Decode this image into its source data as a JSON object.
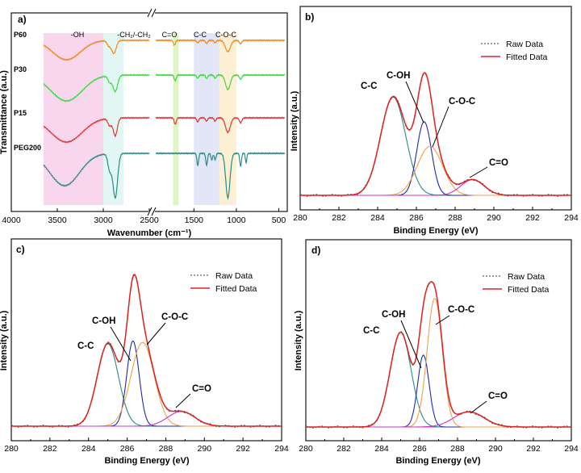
{
  "chart_data": [
    {
      "panel": "a)",
      "type": "line",
      "xlabel": "Wavenumber (cm⁻¹)",
      "ylabel": "Transmittance (a.u.)",
      "xlim": [
        4000,
        400
      ],
      "xticks": [
        4000,
        3500,
        3000,
        2500,
        1500,
        1000,
        500
      ],
      "series": [
        {
          "name": "P60",
          "color": "#ee8a1e"
        },
        {
          "name": "P30",
          "color": "#3ed83e"
        },
        {
          "name": "P15",
          "color": "#e03636"
        },
        {
          "name": "PEG200",
          "color": "#2a8a86"
        }
      ],
      "bands": [
        {
          "label": "-OH",
          "from": 3650,
          "to": 3000,
          "color": "#f7d6ee"
        },
        {
          "label": "-CH₂/-CH₂",
          "from": 3000,
          "to": 2780,
          "color": "#e2f6f4"
        },
        {
          "label": "C=O",
          "from": 1745,
          "to": 1680,
          "color": "#dff5c4"
        },
        {
          "label": "C-C",
          "from": 1500,
          "to": 1200,
          "color": "#e2e6f6"
        },
        {
          "label": "C-O-C",
          "from": 1200,
          "to": 1000,
          "color": "#fcf0d4"
        }
      ]
    },
    {
      "panel": "b)",
      "type": "line",
      "xlabel": "Binding Energy (eV)",
      "ylabel": "Intensity (a.u.)",
      "xlim": [
        280,
        294
      ],
      "xticks": [
        280,
        282,
        284,
        286,
        288,
        290,
        292,
        294
      ],
      "legend": [
        "Raw Data",
        "Fitted Data"
      ],
      "legend_position": "top-right",
      "peaks": [
        {
          "label": "C-C",
          "center": 284.8,
          "height": 1.0,
          "width": 0.65,
          "color": "#2a8a86"
        },
        {
          "label": "C-OH",
          "center": 286.4,
          "height": 0.75,
          "width": 0.38,
          "color": "#1f2aa8"
        },
        {
          "label": "C-O-C",
          "center": 286.7,
          "height": 0.5,
          "width": 0.65,
          "color": "#f0a050"
        },
        {
          "label": "C=O",
          "center": 288.9,
          "height": 0.16,
          "width": 0.6,
          "color": "#cc33cc"
        }
      ]
    },
    {
      "panel": "c)",
      "type": "line",
      "xlabel": "Binding Energy (eV)",
      "ylabel": "Intensity (a.u.)",
      "xlim": [
        280,
        294
      ],
      "xticks": [
        280,
        282,
        284,
        286,
        288,
        290,
        292,
        294
      ],
      "legend": [
        "Raw Data",
        "Fitted Data"
      ],
      "legend_position": "top-right",
      "peaks": [
        {
          "label": "C-C",
          "center": 285.0,
          "height": 0.56,
          "width": 0.55,
          "color": "#2a8a86"
        },
        {
          "label": "C-OH",
          "center": 286.3,
          "height": 0.58,
          "width": 0.32,
          "color": "#1f2aa8"
        },
        {
          "label": "C-O-C",
          "center": 286.8,
          "height": 0.57,
          "width": 0.6,
          "color": "#f0a050"
        },
        {
          "label": "C=O",
          "center": 288.8,
          "height": 0.1,
          "width": 0.7,
          "color": "#cc33cc"
        }
      ]
    },
    {
      "panel": "d)",
      "type": "line",
      "xlabel": "Binding Energy (eV)",
      "ylabel": "Intensity (a.u.)",
      "xlim": [
        280,
        294
      ],
      "xticks": [
        280,
        282,
        284,
        286,
        288,
        290,
        292,
        294
      ],
      "legend": [
        "Raw Data",
        "Fitted Data"
      ],
      "legend_position": "top-right",
      "peaks": [
        {
          "label": "C-C",
          "center": 285.0,
          "height": 0.5,
          "width": 0.55,
          "color": "#2a8a86"
        },
        {
          "label": "C-OH",
          "center": 286.2,
          "height": 0.38,
          "width": 0.3,
          "color": "#1f2aa8"
        },
        {
          "label": "C-O-C",
          "center": 286.8,
          "height": 0.68,
          "width": 0.4,
          "color": "#f0a050"
        },
        {
          "label": "C=O",
          "center": 288.6,
          "height": 0.08,
          "width": 0.8,
          "color": "#cc33cc"
        }
      ]
    }
  ]
}
